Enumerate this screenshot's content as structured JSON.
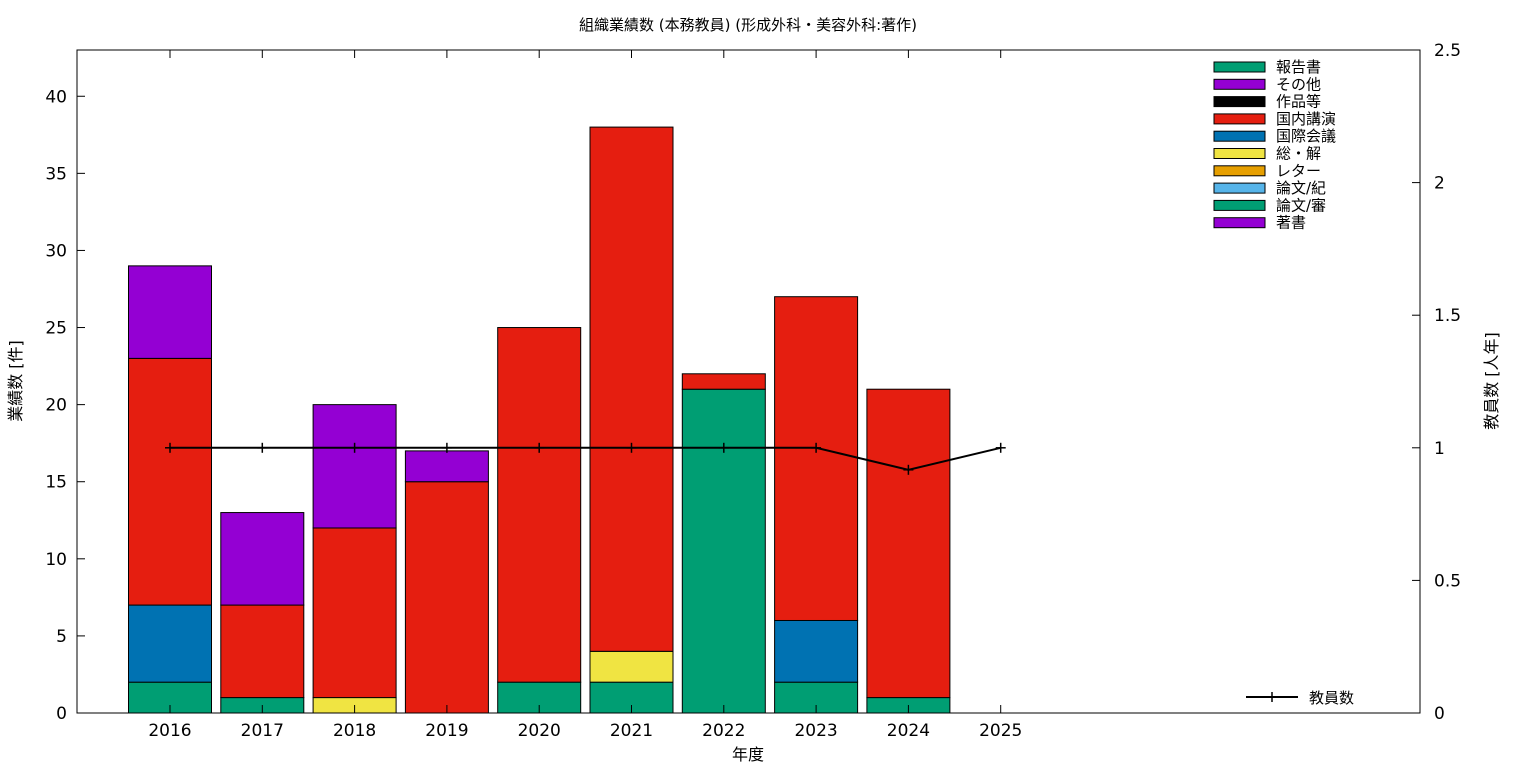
{
  "chart_data": {
    "type": "bar",
    "title": "組織業績数 (本務教員) (形成外科・美容外科:著作)",
    "xlabel": "年度",
    "ylabel": "業績数 [件]",
    "y2label": "教員数 [人年]",
    "categories": [
      "2016",
      "2017",
      "2018",
      "2019",
      "2020",
      "2021",
      "2022",
      "2023",
      "2024",
      "2025"
    ],
    "ylim": [
      0,
      43
    ],
    "yticks": [
      0,
      5,
      10,
      15,
      20,
      25,
      30,
      35,
      40
    ],
    "y2lim": [
      0,
      2.5
    ],
    "y2ticks": [
      "0",
      "0.5",
      "1",
      "1.5",
      "2",
      "2.5"
    ],
    "stacked": true,
    "grid": false,
    "legend_position": "top-right",
    "series": [
      {
        "name": "著書",
        "color": "#9400d3",
        "values": [
          6,
          6,
          8,
          2,
          0,
          0,
          0,
          0,
          0,
          0
        ]
      },
      {
        "name": "論文/審",
        "color": "#009e73",
        "values": [
          2,
          1,
          0,
          0,
          2,
          2,
          21,
          2,
          1,
          0
        ]
      },
      {
        "name": "論文/紀",
        "color": "#56b4e9",
        "values": [
          0,
          0,
          0,
          0,
          0,
          0,
          0,
          0,
          0,
          0
        ]
      },
      {
        "name": "レター",
        "color": "#e69f00",
        "values": [
          0,
          0,
          0,
          0,
          0,
          0,
          0,
          0,
          0,
          0
        ]
      },
      {
        "name": "総・解",
        "color": "#f0e442",
        "values": [
          0,
          0,
          1,
          0,
          0,
          2,
          0,
          0,
          0,
          0
        ]
      },
      {
        "name": "国際会議",
        "color": "#0072b2",
        "values": [
          5,
          0,
          0,
          0,
          0,
          0,
          0,
          4,
          0,
          0
        ]
      },
      {
        "name": "国内講演",
        "color": "#e51e10",
        "values": [
          16,
          6,
          11,
          15,
          23,
          34,
          1,
          21,
          20,
          0
        ]
      },
      {
        "name": "作品等",
        "color": "#000000",
        "values": [
          0,
          0,
          0,
          0,
          0,
          0,
          0,
          0,
          0,
          0
        ]
      },
      {
        "name": "その他",
        "color": "#9400d3",
        "values": [
          0,
          0,
          0,
          0,
          0,
          0,
          0,
          0,
          0,
          0
        ]
      },
      {
        "name": "報告書",
        "color": "#009e73",
        "values": [
          0,
          0,
          0,
          0,
          0,
          0,
          0,
          0,
          0,
          0
        ]
      }
    ],
    "stack_order_bottom_to_top": [
      "論文/審",
      "論文/紀",
      "総・解",
      "レター",
      "国際会議",
      "国内講演",
      "作品等",
      "その他",
      "報告書",
      "著書"
    ],
    "legend_order": [
      "報告書",
      "その他",
      "作品等",
      "国内講演",
      "国際会議",
      "総・解",
      "レター",
      "論文/紀",
      "論文/審",
      "著書"
    ],
    "line_series": {
      "name": "教員数",
      "axis": "y2",
      "color": "#000000",
      "values": [
        1,
        1,
        1,
        1,
        1,
        1,
        1,
        1,
        0.917,
        1
      ]
    }
  }
}
